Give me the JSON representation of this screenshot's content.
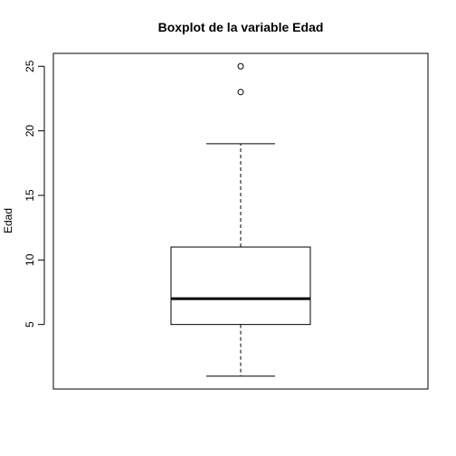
{
  "chart_data": {
    "type": "boxplot",
    "title": "Boxplot de la variable Edad",
    "xlabel": "",
    "ylabel": "Edad",
    "ylim": [
      0,
      26
    ],
    "yticks": [
      5,
      10,
      15,
      20,
      25
    ],
    "grid": false,
    "legend": "none",
    "box": {
      "min": 1,
      "q1": 5,
      "median": 7,
      "q3": 11,
      "max": 19
    },
    "outliers": [
      23,
      25
    ]
  },
  "colors": {
    "stroke": "#000000",
    "background": "#ffffff"
  }
}
